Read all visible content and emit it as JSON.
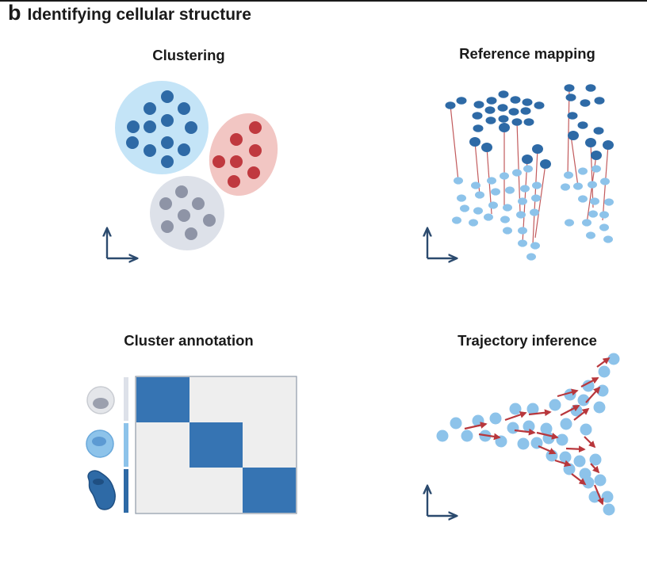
{
  "figure": {
    "panel_letter": "b",
    "section_title": "Identifying cellular structure"
  },
  "panels": [
    {
      "title": "Clustering",
      "icon": "scatter-clusters"
    },
    {
      "title": "Reference mapping",
      "icon": "projection-lines"
    },
    {
      "title": "Cluster annotation",
      "icon": "heatmap-with-cells"
    },
    {
      "title": "Trajectory inference",
      "icon": "branching-trajectory"
    }
  ],
  "colors": {
    "dark_blue": "#2e6aa6",
    "light_blue": "#8dc3ea",
    "pale_blue_region": "#c4e4f7",
    "red_dot": "#c0393f",
    "pink_region": "#f2c6c3",
    "gray_dot": "#8e94a6",
    "gray_region": "#dde1e9",
    "arrow_red": "#b8373c",
    "axis_navy": "#2b4a6e",
    "heatmap_dark": "#3674b3",
    "heatmap_light": "#eeeeee"
  }
}
